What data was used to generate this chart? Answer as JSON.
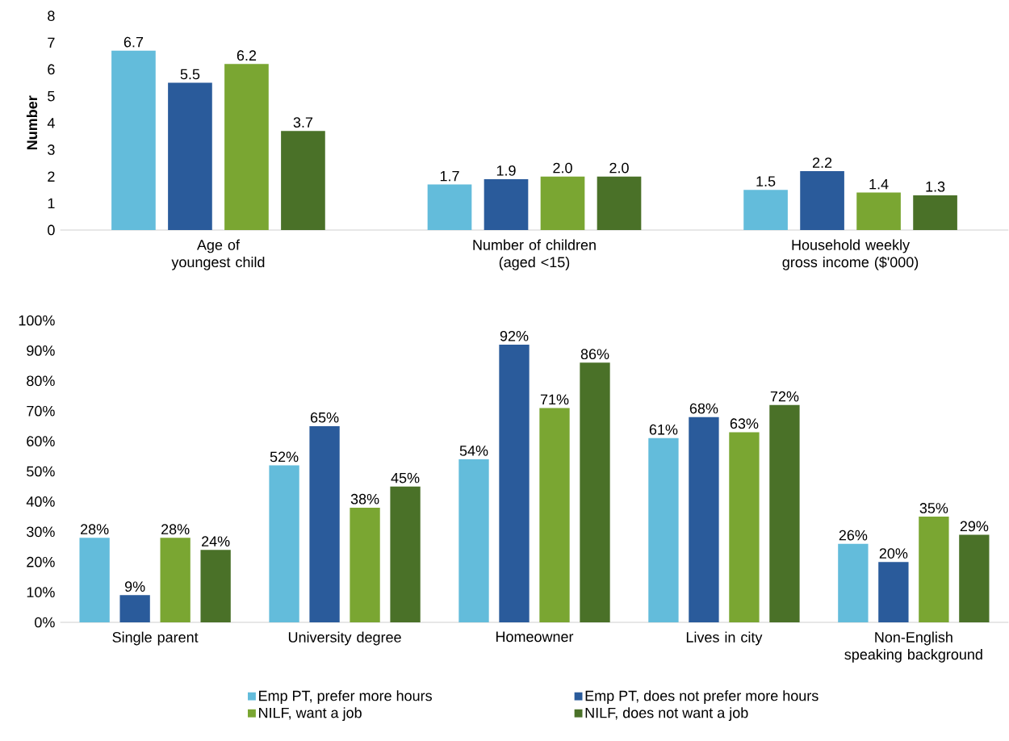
{
  "chart_data": [
    {
      "type": "bar",
      "ylabel": "Number",
      "categories": [
        "Age of youngest child",
        "Number of children (aged <15)",
        "Household weekly gross income ($'000)"
      ],
      "ylim": [
        0,
        8
      ],
      "yticks": [
        0,
        1,
        2,
        3,
        4,
        5,
        6,
        7,
        8
      ],
      "grid": false,
      "legend": false,
      "series": [
        {
          "color": "#63bcdb",
          "values": [
            6.7,
            1.7,
            1.5
          ],
          "value_labels": [
            "6.7",
            "1.7",
            "1.5"
          ]
        },
        {
          "color": "#2a5b9b",
          "values": [
            5.5,
            1.9,
            2.2
          ],
          "value_labels": [
            "5.5",
            "1.9",
            "2.2"
          ]
        },
        {
          "color": "#7aa632",
          "values": [
            6.2,
            2.0,
            1.4
          ],
          "value_labels": [
            "6.2",
            "2.0",
            "1.4"
          ]
        },
        {
          "color": "#4a7128",
          "values": [
            3.7,
            2.0,
            1.3
          ],
          "value_labels": [
            "3.7",
            "2.0",
            "1.3"
          ]
        }
      ]
    },
    {
      "type": "bar",
      "categories": [
        "Single parent",
        "University degree",
        "Homeowner",
        "Lives in city",
        "Non-English speaking background"
      ],
      "ylim": [
        0,
        100
      ],
      "yticks": [
        {
          "value": 0,
          "label": "0%"
        },
        {
          "value": 10,
          "label": "10%"
        },
        {
          "value": 20,
          "label": "20%"
        },
        {
          "value": 30,
          "label": "30%"
        },
        {
          "value": 40,
          "label": "40%"
        },
        {
          "value": 50,
          "label": "50%"
        },
        {
          "value": 60,
          "label": "60%"
        },
        {
          "value": 70,
          "label": "70%"
        },
        {
          "value": 80,
          "label": "80%"
        },
        {
          "value": 90,
          "label": "90%"
        },
        {
          "value": 100,
          "label": "100%"
        }
      ],
      "grid": false,
      "legend": "bottom",
      "series": [
        {
          "name": "Emp PT, prefer more hours",
          "color": "#63bcdb",
          "values": [
            28,
            52,
            54,
            61,
            26
          ],
          "value_labels": [
            "28%",
            "52%",
            "54%",
            "61%",
            "26%"
          ]
        },
        {
          "name": "Emp PT, does not prefer more hours",
          "color": "#2a5b9b",
          "values": [
            9,
            65,
            92,
            68,
            20
          ],
          "value_labels": [
            "9%",
            "65%",
            "92%",
            "68%",
            "20%"
          ]
        },
        {
          "name": "NILF, want a job",
          "color": "#7aa632",
          "values": [
            28,
            38,
            71,
            63,
            35
          ],
          "value_labels": [
            "28%",
            "38%",
            "71%",
            "63%",
            "35%"
          ]
        },
        {
          "name": "NILF, does not want a job",
          "color": "#4a7128",
          "values": [
            24,
            45,
            86,
            72,
            29
          ],
          "value_labels": [
            "24%",
            "45%",
            "86%",
            "72%",
            "29%"
          ]
        }
      ]
    }
  ]
}
